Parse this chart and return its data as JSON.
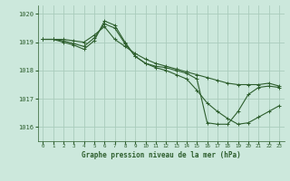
{
  "background_color": "#cce8dc",
  "grid_color": "#aaccbc",
  "line_color": "#2d5e2d",
  "title": "Graphe pression niveau de la mer (hPa)",
  "xlim": [
    -0.5,
    23.5
  ],
  "ylim": [
    1015.5,
    1020.3
  ],
  "yticks": [
    1016,
    1017,
    1018,
    1019,
    1020
  ],
  "xticks": [
    0,
    1,
    2,
    3,
    4,
    5,
    6,
    7,
    8,
    9,
    10,
    11,
    12,
    13,
    14,
    15,
    16,
    17,
    18,
    19,
    20,
    21,
    22,
    23
  ],
  "series": [
    [
      1019.1,
      1019.1,
      1019.1,
      1019.05,
      1019.0,
      1019.25,
      1019.55,
      1019.1,
      1018.85,
      1018.6,
      1018.4,
      1018.25,
      1018.15,
      1018.05,
      1017.95,
      1017.85,
      1017.75,
      1017.65,
      1017.55,
      1017.5,
      1017.5,
      1017.5,
      1017.55,
      1017.45
    ],
    [
      1019.1,
      1019.1,
      1019.05,
      1018.95,
      1018.85,
      1019.15,
      1019.65,
      1019.5,
      1018.95,
      1018.5,
      1018.25,
      1018.1,
      1018.0,
      1017.85,
      1017.7,
      1017.3,
      1016.85,
      1016.55,
      1016.3,
      1016.1,
      1016.15,
      1016.35,
      1016.55,
      1016.75
    ],
    [
      1019.1,
      1019.1,
      1019.0,
      1018.9,
      1018.75,
      1019.05,
      1019.75,
      1019.6,
      1019.0,
      1018.5,
      1018.25,
      1018.15,
      1018.1,
      1018.0,
      1017.9,
      1017.7,
      1016.15,
      1016.1,
      1016.1,
      1016.55,
      1017.15,
      1017.4,
      1017.45,
      1017.4
    ]
  ]
}
